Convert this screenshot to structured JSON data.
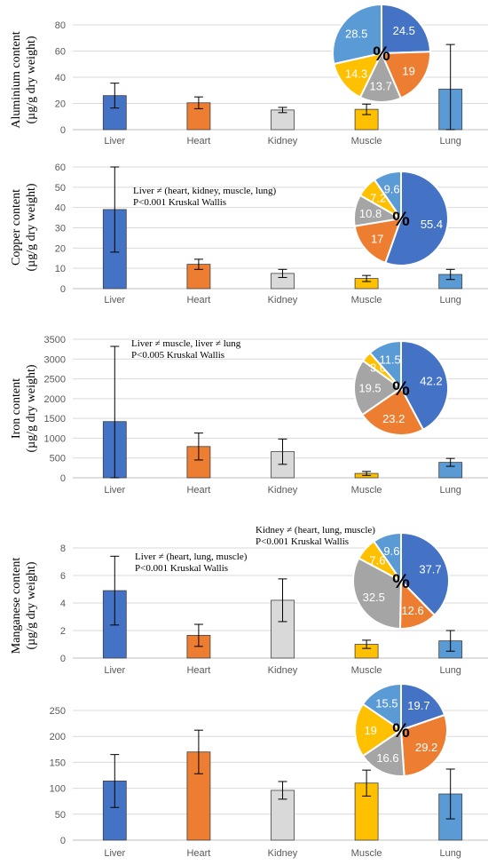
{
  "colors": {
    "Liver": "#4472C4",
    "Heart": "#ED7D31",
    "Kidney": "#D9D9D9",
    "Muscle": "#FFC000",
    "Lung": "#5B9BD5",
    "pie_gray": "#A5A5A5"
  },
  "chart_data": [
    {
      "type": "bar",
      "ylabel": [
        "Aluminium content",
        "(µg/g dry weight)"
      ],
      "categories": [
        "Liver",
        "Heart",
        "Kidney",
        "Muscle",
        "Lung"
      ],
      "values": [
        26,
        20.5,
        15,
        15.5,
        31
      ],
      "error": [
        9.5,
        4.5,
        2,
        4,
        34
      ],
      "ylim": [
        0,
        80
      ],
      "yticks": [
        0,
        20,
        40,
        60,
        80
      ],
      "annotations": [],
      "pie": {
        "center_label": "%",
        "slices": [
          {
            "category": "Liver",
            "value": 24.5
          },
          {
            "category": "Heart",
            "value": 19
          },
          {
            "category": "Kidney",
            "value": 13.7
          },
          {
            "category": "Muscle",
            "value": 14.3
          },
          {
            "category": "Lung",
            "value": 28.5
          }
        ]
      }
    },
    {
      "type": "bar",
      "ylabel": [
        "Copper content",
        "(µg/g dry weight)"
      ],
      "categories": [
        "Liver",
        "Heart",
        "Kidney",
        "Muscle",
        "Lung"
      ],
      "values": [
        39,
        12,
        7.5,
        5,
        7
      ],
      "error": [
        21,
        2.5,
        2,
        1.5,
        2.5
      ],
      "ylim": [
        0,
        60
      ],
      "yticks": [
        0,
        10,
        20,
        30,
        40,
        50,
        60
      ],
      "annotations": [
        "Liver ≠ (heart, kidney, muscle, lung)",
        "P<0.001 Kruskal Wallis"
      ],
      "pie": {
        "center_label": "%",
        "slices": [
          {
            "category": "Liver",
            "value": 55.4
          },
          {
            "category": "Heart",
            "value": 17
          },
          {
            "category": "Kidney",
            "value": 10.8
          },
          {
            "category": "Muscle",
            "value": 7.2
          },
          {
            "category": "Lung",
            "value": 9.6
          }
        ]
      }
    },
    {
      "type": "bar",
      "ylabel": [
        "Iron content",
        "(µg/g dry weight)"
      ],
      "categories": [
        "Liver",
        "Heart",
        "Kidney",
        "Muscle",
        "Lung"
      ],
      "values": [
        1420,
        790,
        660,
        110,
        390
      ],
      "error": [
        1900,
        340,
        320,
        50,
        100
      ],
      "ylim": [
        0,
        3500
      ],
      "yticks": [
        0,
        500,
        1000,
        1500,
        2000,
        2500,
        3000,
        3500
      ],
      "annotations": [
        "Liver ≠ muscle, liver ≠ lung",
        "P<0.005 Kruskal Wallis"
      ],
      "pie": {
        "center_label": "%",
        "slices": [
          {
            "category": "Liver",
            "value": 42.2
          },
          {
            "category": "Heart",
            "value": 23.2
          },
          {
            "category": "Kidney",
            "value": 19.5
          },
          {
            "category": "Muscle",
            "value": 3.6
          },
          {
            "category": "Lung",
            "value": 11.5
          }
        ]
      }
    },
    {
      "type": "bar",
      "ylabel": [
        "Manganese content",
        "(µg/g dry weight)"
      ],
      "categories": [
        "Liver",
        "Heart",
        "Kidney",
        "Muscle",
        "Lung"
      ],
      "values": [
        4.9,
        1.65,
        4.2,
        1.0,
        1.25
      ],
      "error": [
        2.5,
        0.8,
        1.55,
        0.3,
        0.75
      ],
      "ylim": [
        0,
        8
      ],
      "yticks": [
        0,
        2,
        4,
        6,
        8
      ],
      "annotations": [
        "Liver ≠ (heart, lung, muscle)",
        "P<0.001 Kruskal Wallis"
      ],
      "annotations2": [
        "Kidney ≠ (heart, lung, muscle)",
        "P<0.001 Kruskal Wallis"
      ],
      "pie": {
        "center_label": "%",
        "slices": [
          {
            "category": "Liver",
            "value": 37.7
          },
          {
            "category": "Heart",
            "value": 12.6
          },
          {
            "category": "Kidney",
            "value": 32.5
          },
          {
            "category": "Muscle",
            "value": 7.6
          },
          {
            "category": "Lung",
            "value": 9.6
          }
        ]
      }
    },
    {
      "type": "bar",
      "ylabel": [],
      "categories": [
        "Liver",
        "Heart",
        "Kidney",
        "Muscle",
        "Lung"
      ],
      "values": [
        114,
        170,
        96,
        110,
        89
      ],
      "error": [
        51,
        42,
        17,
        25,
        48
      ],
      "ylim": [
        0,
        250
      ],
      "yticks": [
        0,
        50,
        100,
        150,
        200,
        250
      ],
      "annotations": [],
      "pie": {
        "center_label": "%",
        "slices": [
          {
            "category": "Liver",
            "value": 19.7
          },
          {
            "category": "Heart",
            "value": 29.2
          },
          {
            "category": "Kidney",
            "value": 16.6
          },
          {
            "category": "Muscle",
            "value": 19
          },
          {
            "category": "Lung",
            "value": 15.5
          }
        ]
      }
    }
  ]
}
